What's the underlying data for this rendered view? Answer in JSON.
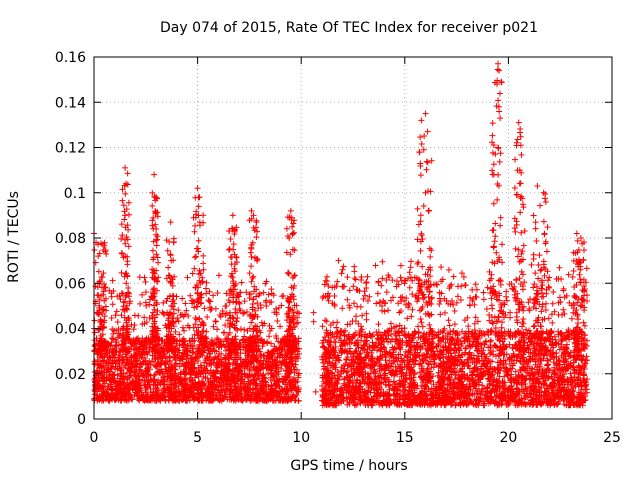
{
  "chart_data": {
    "type": "scatter",
    "title": "Day 074 of 2015, Rate Of TEC Index for receiver p021",
    "xlabel": "GPS time / hours",
    "ylabel": "ROTI / TECUs",
    "xlim": [
      0,
      25
    ],
    "ylim": [
      0,
      0.16
    ],
    "x_ticks": [
      "0",
      "5",
      "10",
      "15",
      "20",
      "25"
    ],
    "y_ticks": [
      "0",
      "0.02",
      "0.04",
      "0.06",
      "0.08",
      "0.1",
      "0.12",
      "0.14",
      "0.16"
    ],
    "grid": true,
    "marker": "+",
    "series_color": "#ff0000",
    "notable_points": [
      {
        "x": 0.0,
        "y": 0.082
      },
      {
        "x": 0.1,
        "y": 0.078
      },
      {
        "x": 0.2,
        "y": 0.072
      },
      {
        "x": 1.5,
        "y": 0.111
      },
      {
        "x": 1.55,
        "y": 0.104
      },
      {
        "x": 1.5,
        "y": 0.09
      },
      {
        "x": 2.9,
        "y": 0.108
      },
      {
        "x": 2.95,
        "y": 0.098
      },
      {
        "x": 3.0,
        "y": 0.084
      },
      {
        "x": 3.7,
        "y": 0.087
      },
      {
        "x": 5.0,
        "y": 0.102
      },
      {
        "x": 5.05,
        "y": 0.094
      },
      {
        "x": 6.7,
        "y": 0.09
      },
      {
        "x": 7.6,
        "y": 0.092
      },
      {
        "x": 7.7,
        "y": 0.09
      },
      {
        "x": 9.5,
        "y": 0.092
      },
      {
        "x": 9.6,
        "y": 0.082
      },
      {
        "x": 10.6,
        "y": 0.047
      },
      {
        "x": 10.6,
        "y": 0.043
      },
      {
        "x": 10.7,
        "y": 0.012
      },
      {
        "x": 15.8,
        "y": 0.132
      },
      {
        "x": 16.0,
        "y": 0.135
      },
      {
        "x": 16.1,
        "y": 0.127
      },
      {
        "x": 15.7,
        "y": 0.118
      },
      {
        "x": 16.0,
        "y": 0.1
      },
      {
        "x": 19.5,
        "y": 0.157
      },
      {
        "x": 19.55,
        "y": 0.154
      },
      {
        "x": 19.45,
        "y": 0.148
      },
      {
        "x": 19.6,
        "y": 0.133
      },
      {
        "x": 19.5,
        "y": 0.12
      },
      {
        "x": 19.3,
        "y": 0.108
      },
      {
        "x": 20.5,
        "y": 0.131
      },
      {
        "x": 20.6,
        "y": 0.121
      },
      {
        "x": 20.55,
        "y": 0.11
      },
      {
        "x": 21.4,
        "y": 0.103
      },
      {
        "x": 21.7,
        "y": 0.1
      },
      {
        "x": 23.3,
        "y": 0.082
      },
      {
        "x": 23.5,
        "y": 0.08
      }
    ],
    "bursts": [
      {
        "x0": 0.0,
        "x1": 0.6,
        "peak": 0.078
      },
      {
        "x0": 1.3,
        "x1": 1.7,
        "peak": 0.11
      },
      {
        "x0": 2.8,
        "x1": 3.1,
        "peak": 0.1
      },
      {
        "x0": 3.5,
        "x1": 3.9,
        "peak": 0.08
      },
      {
        "x0": 4.8,
        "x1": 5.3,
        "peak": 0.1
      },
      {
        "x0": 6.5,
        "x1": 6.9,
        "peak": 0.085
      },
      {
        "x0": 7.5,
        "x1": 7.9,
        "peak": 0.09
      },
      {
        "x0": 9.3,
        "x1": 9.7,
        "peak": 0.09
      },
      {
        "x0": 15.6,
        "x1": 16.3,
        "peak": 0.13
      },
      {
        "x0": 19.2,
        "x1": 19.7,
        "peak": 0.155
      },
      {
        "x0": 20.3,
        "x1": 20.8,
        "peak": 0.13
      },
      {
        "x0": 21.2,
        "x1": 21.9,
        "peak": 0.1
      },
      {
        "x0": 23.1,
        "x1": 23.7,
        "peak": 0.08
      }
    ],
    "data_ranges": [
      {
        "x0": 0.0,
        "x1": 9.9,
        "y_core_min": 0.008,
        "y_core_max": 0.045
      },
      {
        "x0": 11.0,
        "x1": 23.8,
        "y_core_min": 0.006,
        "y_core_max": 0.05
      }
    ]
  }
}
